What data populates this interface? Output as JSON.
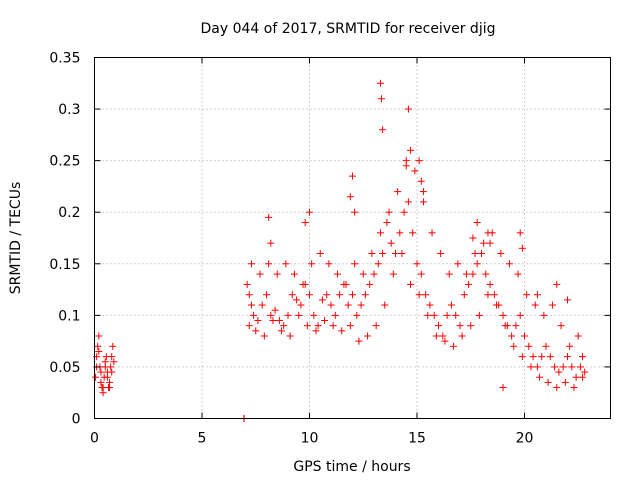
{
  "chart_data": {
    "type": "scatter",
    "title": "Day 044 of 2017, SRMTID for receiver djig",
    "xlabel": "GPS time / hours",
    "ylabel": "SRMTID / TECUs",
    "xlim": [
      0,
      24
    ],
    "ylim": [
      0,
      0.35
    ],
    "xticks": [
      0,
      5,
      10,
      15,
      20
    ],
    "xtick_labels": [
      "0",
      "5",
      "10",
      "15",
      "20"
    ],
    "yticks": [
      0,
      0.05,
      0.1,
      0.15,
      0.2,
      0.25,
      0.3,
      0.35
    ],
    "ytick_labels": [
      "0",
      "0.05",
      "0.1",
      "0.15",
      "0.2",
      "0.25",
      "0.3",
      "0.35"
    ],
    "grid": true,
    "marker": "+",
    "color": "#ff0000",
    "series": [
      {
        "x": [
          0.05,
          0.1,
          0.15,
          0.2,
          0.25,
          0.3,
          0.35,
          0.4,
          0.45,
          0.5,
          0.55,
          0.6,
          0.65,
          0.7,
          0.75,
          0.8,
          0.85,
          0.9,
          0.1,
          0.2,
          0.3,
          0.4,
          0.5,
          0.6,
          0.7,
          0.8,
          6.95,
          6.96,
          7.1,
          7.2,
          7.3,
          7.4,
          7.6,
          7.8,
          8.0,
          8.2,
          8.4,
          8.6,
          8.8,
          9.0,
          9.2,
          9.4,
          9.6,
          9.8,
          10.0,
          10.2,
          10.4,
          10.6,
          10.8,
          11.0,
          11.2,
          11.4,
          11.6,
          11.8,
          12.0,
          12.2,
          12.4,
          12.6,
          12.8,
          13.0,
          13.2,
          13.4,
          13.6,
          13.8,
          14.0,
          14.2,
          14.4,
          14.6,
          14.8,
          15.0,
          15.2,
          15.4,
          15.6,
          15.8,
          16.0,
          16.2,
          16.4,
          16.6,
          16.8,
          17.0,
          17.2,
          17.4,
          17.6,
          17.8,
          18.0,
          18.2,
          18.4,
          18.6,
          18.8,
          19.0,
          19.2,
          19.4,
          19.6,
          19.8,
          20.0,
          20.2,
          20.4,
          20.6,
          20.8,
          21.0,
          21.2,
          21.4,
          21.6,
          21.8,
          22.0,
          22.2,
          22.4,
          22.6,
          22.8,
          7.2,
          7.5,
          7.9,
          8.3,
          8.7,
          9.1,
          9.5,
          9.9,
          10.3,
          10.7,
          11.1,
          11.5,
          11.9,
          12.3,
          12.7,
          13.1,
          13.5,
          13.9,
          14.3,
          14.7,
          15.1,
          15.5,
          15.9,
          16.3,
          16.7,
          17.1,
          17.5,
          17.9,
          18.3,
          18.7,
          19.1,
          19.5,
          19.9,
          20.3,
          20.7,
          21.1,
          21.5,
          21.9,
          22.3,
          22.7,
          7.3,
          7.7,
          8.1,
          8.5,
          8.9,
          9.3,
          9.7,
          10.1,
          10.5,
          10.9,
          11.3,
          11.7,
          12.1,
          12.5,
          12.9,
          13.3,
          13.7,
          14.1,
          14.5,
          14.9,
          15.3,
          15.7,
          16.1,
          16.5,
          16.9,
          17.3,
          17.7,
          18.1,
          18.5,
          18.9,
          19.3,
          19.7,
          20.1,
          20.5,
          20.9,
          21.3,
          21.7,
          22.1,
          22.5,
          13.3,
          13.35,
          13.4,
          14.6,
          14.7,
          14.5,
          15.1,
          15.2,
          15.3,
          12.0,
          12.1,
          11.9,
          10.0,
          9.8,
          17.8,
          17.6,
          19.8,
          19.9,
          8.1,
          8.2,
          18.3,
          18.4,
          21.5,
          22.0,
          19.0,
          20.6,
          22.7
        ],
        "y": [
          0.04,
          0.06,
          0.07,
          0.08,
          0.05,
          0.035,
          0.03,
          0.025,
          0.04,
          0.05,
          0.06,
          0.045,
          0.03,
          0.035,
          0.05,
          0.06,
          0.07,
          0.055,
          0.05,
          0.065,
          0.045,
          0.03,
          0.055,
          0.04,
          0.03,
          0.045,
          0.0,
          0.0,
          0.13,
          0.12,
          0.11,
          0.1,
          0.095,
          0.11,
          0.12,
          0.1,
          0.105,
          0.095,
          0.09,
          0.1,
          0.12,
          0.115,
          0.11,
          0.13,
          0.12,
          0.1,
          0.09,
          0.115,
          0.12,
          0.11,
          0.1,
          0.12,
          0.13,
          0.11,
          0.12,
          0.1,
          0.11,
          0.12,
          0.13,
          0.14,
          0.15,
          0.16,
          0.19,
          0.17,
          0.16,
          0.18,
          0.2,
          0.21,
          0.18,
          0.15,
          0.14,
          0.12,
          0.11,
          0.1,
          0.09,
          0.08,
          0.1,
          0.11,
          0.1,
          0.09,
          0.12,
          0.13,
          0.14,
          0.15,
          0.16,
          0.14,
          0.13,
          0.12,
          0.11,
          0.1,
          0.09,
          0.08,
          0.09,
          0.1,
          0.08,
          0.07,
          0.06,
          0.05,
          0.06,
          0.07,
          0.06,
          0.05,
          0.045,
          0.05,
          0.06,
          0.05,
          0.04,
          0.05,
          0.045,
          0.09,
          0.085,
          0.08,
          0.095,
          0.085,
          0.08,
          0.1,
          0.09,
          0.085,
          0.095,
          0.09,
          0.085,
          0.09,
          0.075,
          0.08,
          0.09,
          0.11,
          0.14,
          0.16,
          0.13,
          0.12,
          0.1,
          0.08,
          0.075,
          0.07,
          0.08,
          0.09,
          0.1,
          0.12,
          0.11,
          0.09,
          0.07,
          0.06,
          0.05,
          0.04,
          0.035,
          0.03,
          0.035,
          0.03,
          0.04,
          0.15,
          0.14,
          0.15,
          0.14,
          0.15,
          0.14,
          0.13,
          0.15,
          0.16,
          0.15,
          0.14,
          0.13,
          0.15,
          0.14,
          0.16,
          0.18,
          0.2,
          0.22,
          0.25,
          0.24,
          0.22,
          0.18,
          0.16,
          0.14,
          0.15,
          0.14,
          0.16,
          0.17,
          0.18,
          0.16,
          0.15,
          0.14,
          0.12,
          0.11,
          0.1,
          0.11,
          0.09,
          0.07,
          0.08,
          0.325,
          0.31,
          0.28,
          0.3,
          0.26,
          0.245,
          0.25,
          0.23,
          0.21,
          0.235,
          0.2,
          0.215,
          0.2,
          0.19,
          0.19,
          0.175,
          0.18,
          0.165,
          0.195,
          0.17,
          0.18,
          0.17,
          0.13,
          0.115,
          0.03,
          0.12,
          0.06
        ]
      }
    ]
  }
}
